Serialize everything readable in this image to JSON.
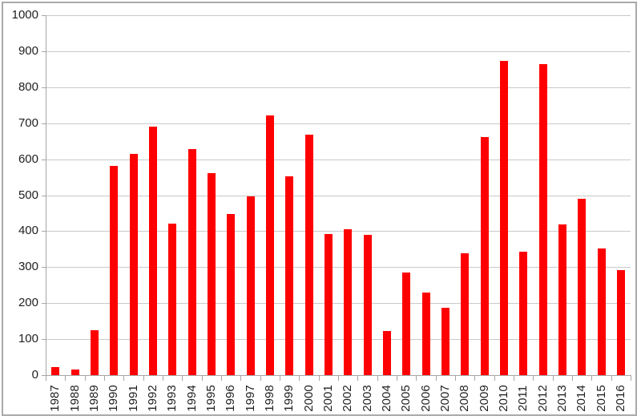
{
  "chart_data": {
    "type": "bar",
    "title": "",
    "xlabel": "",
    "ylabel": "",
    "categories": [
      "1987",
      "1988",
      "1989",
      "1990",
      "1991",
      "1992",
      "1993",
      "1994",
      "1995",
      "1996",
      "1997",
      "1998",
      "1999",
      "2000",
      "2001",
      "2002",
      "2003",
      "2004",
      "2005",
      "2006",
      "2007",
      "2008",
      "2009",
      "2010",
      "2011",
      "2012",
      "2013",
      "2014",
      "2015",
      "2016"
    ],
    "values": [
      22,
      15,
      125,
      582,
      614,
      691,
      422,
      627,
      562,
      448,
      496,
      721,
      553,
      669,
      391,
      405,
      389,
      122,
      284,
      230,
      186,
      338,
      661,
      872,
      343,
      865,
      418,
      489,
      351,
      291
    ],
    "ylim": [
      0,
      1000
    ],
    "ytick_step": 100,
    "ytick_labels": [
      "0",
      "100",
      "200",
      "300",
      "400",
      "500",
      "600",
      "700",
      "800",
      "900",
      "1000"
    ],
    "grid": true,
    "legend": false,
    "colors": {
      "bar": "#ff0000",
      "gridline": "#c9c9c9",
      "axis": "#a6a6a6",
      "label": "#1f1f1f",
      "frame_border": "#a9a9a9",
      "background": "#ffffff"
    }
  }
}
